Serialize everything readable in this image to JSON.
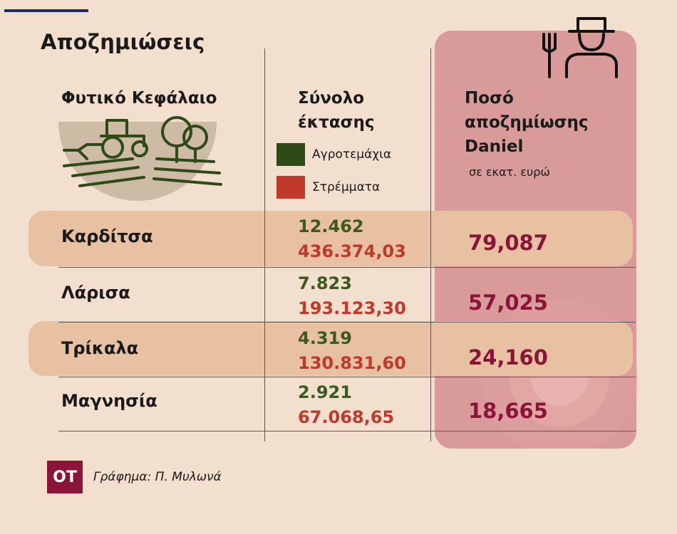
{
  "title": "Αποζημιώσεις",
  "headers": {
    "crop_capital": "Φυτικό Κεφάλαιο",
    "total_area": [
      "Σύνολο",
      "έκτασης"
    ],
    "compensation": [
      "Ποσό",
      "αποζημίωσης",
      "Daniel"
    ],
    "compensation_unit": "σε εκατ. ευρώ"
  },
  "legend": [
    {
      "label": "Αγροτεμάχια",
      "color": "#2d4a17"
    },
    {
      "label": "Στρέμματα",
      "color": "#c0392b"
    }
  ],
  "chart_data": {
    "type": "table",
    "columns": [
      "Φυτικό Κεφάλαιο",
      "Αγροτεμάχια",
      "Στρέμματα",
      "Ποσό αποζημίωσης Daniel (σε εκατ. ευρώ)"
    ],
    "rows": [
      {
        "region": "Καρδίτσα",
        "plots": "12.462",
        "area": "436.374,03",
        "amount": "79,087"
      },
      {
        "region": "Λάρισα",
        "plots": "7.823",
        "area": "193.123,30",
        "amount": "57,025"
      },
      {
        "region": "Τρίκαλα",
        "plots": "4.319",
        "area": "130.831,60",
        "amount": "24,160"
      },
      {
        "region": "Μαγνησία",
        "plots": "2.921",
        "area": "67.068,65",
        "amount": "18,665"
      }
    ]
  },
  "footer": {
    "logo": "OT",
    "credit": "Γράφημα: Π. Μυλωνά"
  }
}
